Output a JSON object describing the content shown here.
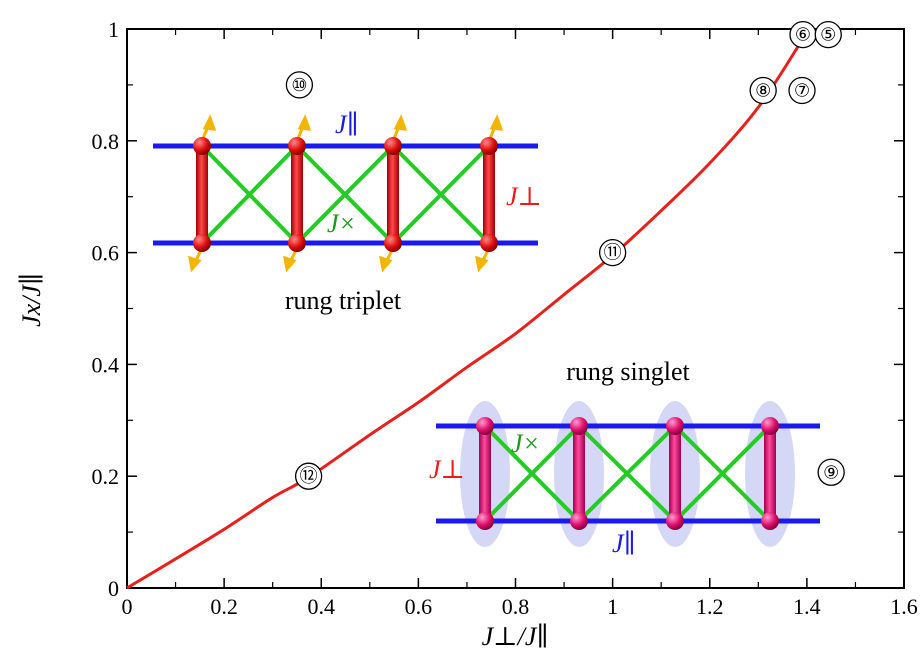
{
  "chart_data": {
    "type": "line",
    "xlabel": "J⊥/J∥",
    "ylabel": "Jx/J∥",
    "xlim": [
      0,
      1.6
    ],
    "ylim": [
      0,
      1
    ],
    "xticks": [
      0,
      0.2,
      0.4,
      0.6,
      0.8,
      1,
      1.2,
      1.4,
      1.6
    ],
    "yticks": [
      0,
      0.2,
      0.4,
      0.6,
      0.8,
      1
    ],
    "xtick_labels": [
      "0",
      "0.2",
      "0.4",
      "0.6",
      "0.8",
      "1",
      "1.2",
      "1.4",
      "1.6"
    ],
    "ytick_labels": [
      "0",
      "0.2",
      "0.4",
      "0.6",
      "0.8",
      "1"
    ],
    "series": [
      {
        "color": "#e8201a",
        "x": [
          0,
          0.1,
          0.2,
          0.3,
          0.374,
          0.5,
          0.6,
          0.7,
          0.8,
          0.9,
          1.0,
          1.1,
          1.2,
          1.3,
          1.39
        ],
        "y": [
          0,
          0.052,
          0.105,
          0.162,
          0.198,
          0.274,
          0.332,
          0.395,
          0.455,
          0.525,
          0.595,
          0.675,
          0.76,
          0.86,
          0.98
        ]
      }
    ],
    "markers": [
      {
        "label": "⑥",
        "x": 1.392,
        "y": 0.99
      },
      {
        "label": "⑤",
        "x": 1.444,
        "y": 0.99
      },
      {
        "label": "⑧",
        "x": 1.31,
        "y": 0.89
      },
      {
        "label": "⑦",
        "x": 1.39,
        "y": 0.89
      },
      {
        "label": "⑩",
        "x": 0.355,
        "y": 0.9
      },
      {
        "label": "⑪",
        "x": 1.0,
        "y": 0.6
      },
      {
        "label": "⑫",
        "x": 0.374,
        "y": 0.2
      },
      {
        "label": "⑨",
        "x": 1.45,
        "y": 0.207
      }
    ],
    "annotations": {
      "region_top": "rung triplet",
      "region_bottom": "rung singlet",
      "j_parallel": "J∥",
      "j_perp": "J⊥",
      "j_cross": "J×"
    }
  }
}
